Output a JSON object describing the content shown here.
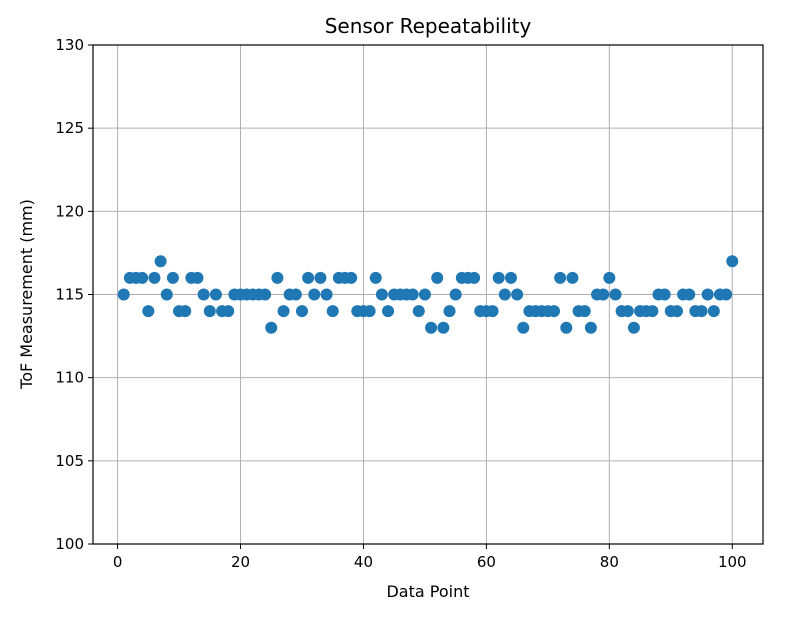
{
  "chart_data": {
    "type": "scatter",
    "title": "Sensor Repeatability",
    "xlabel": "Data Point",
    "ylabel": "ToF Measurement (mm)",
    "xlim": [
      -4,
      105
    ],
    "ylim": [
      100,
      130
    ],
    "xticks": [
      0,
      20,
      40,
      60,
      80,
      100
    ],
    "yticks": [
      100,
      105,
      110,
      115,
      120,
      125,
      130
    ],
    "grid": true,
    "series": [
      {
        "color": "#1f77b4",
        "x": [
          1,
          2,
          3,
          4,
          5,
          6,
          7,
          8,
          9,
          10,
          11,
          12,
          13,
          14,
          15,
          16,
          17,
          18,
          19,
          20,
          21,
          22,
          23,
          24,
          25,
          26,
          27,
          28,
          29,
          30,
          31,
          32,
          33,
          34,
          35,
          36,
          37,
          38,
          39,
          40,
          41,
          42,
          43,
          44,
          45,
          46,
          47,
          48,
          49,
          50,
          51,
          52,
          53,
          54,
          55,
          56,
          57,
          58,
          59,
          60,
          61,
          62,
          63,
          64,
          65,
          66,
          67,
          68,
          69,
          70,
          71,
          72,
          73,
          74,
          75,
          76,
          77,
          78,
          79,
          80,
          81,
          82,
          83,
          84,
          85,
          86,
          87,
          88,
          89,
          90,
          91,
          92,
          93,
          94,
          95,
          96,
          97,
          98,
          99,
          100
        ],
        "y": [
          115,
          116,
          116,
          116,
          114,
          116,
          117,
          115,
          116,
          114,
          114,
          116,
          116,
          115,
          114,
          115,
          114,
          114,
          115,
          115,
          115,
          115,
          115,
          115,
          113,
          116,
          114,
          115,
          115,
          114,
          116,
          115,
          116,
          115,
          114,
          116,
          116,
          116,
          114,
          114,
          114,
          116,
          115,
          114,
          115,
          115,
          115,
          115,
          114,
          115,
          113,
          116,
          113,
          114,
          115,
          116,
          116,
          116,
          114,
          114,
          114,
          116,
          115,
          116,
          115,
          113,
          114,
          114,
          114,
          114,
          114,
          116,
          113,
          116,
          114,
          114,
          113,
          115,
          115,
          116,
          115,
          114,
          114,
          113,
          114,
          114,
          114,
          115,
          115,
          114,
          114,
          115,
          115,
          114,
          114,
          115,
          114,
          115,
          115,
          117
        ]
      }
    ]
  }
}
